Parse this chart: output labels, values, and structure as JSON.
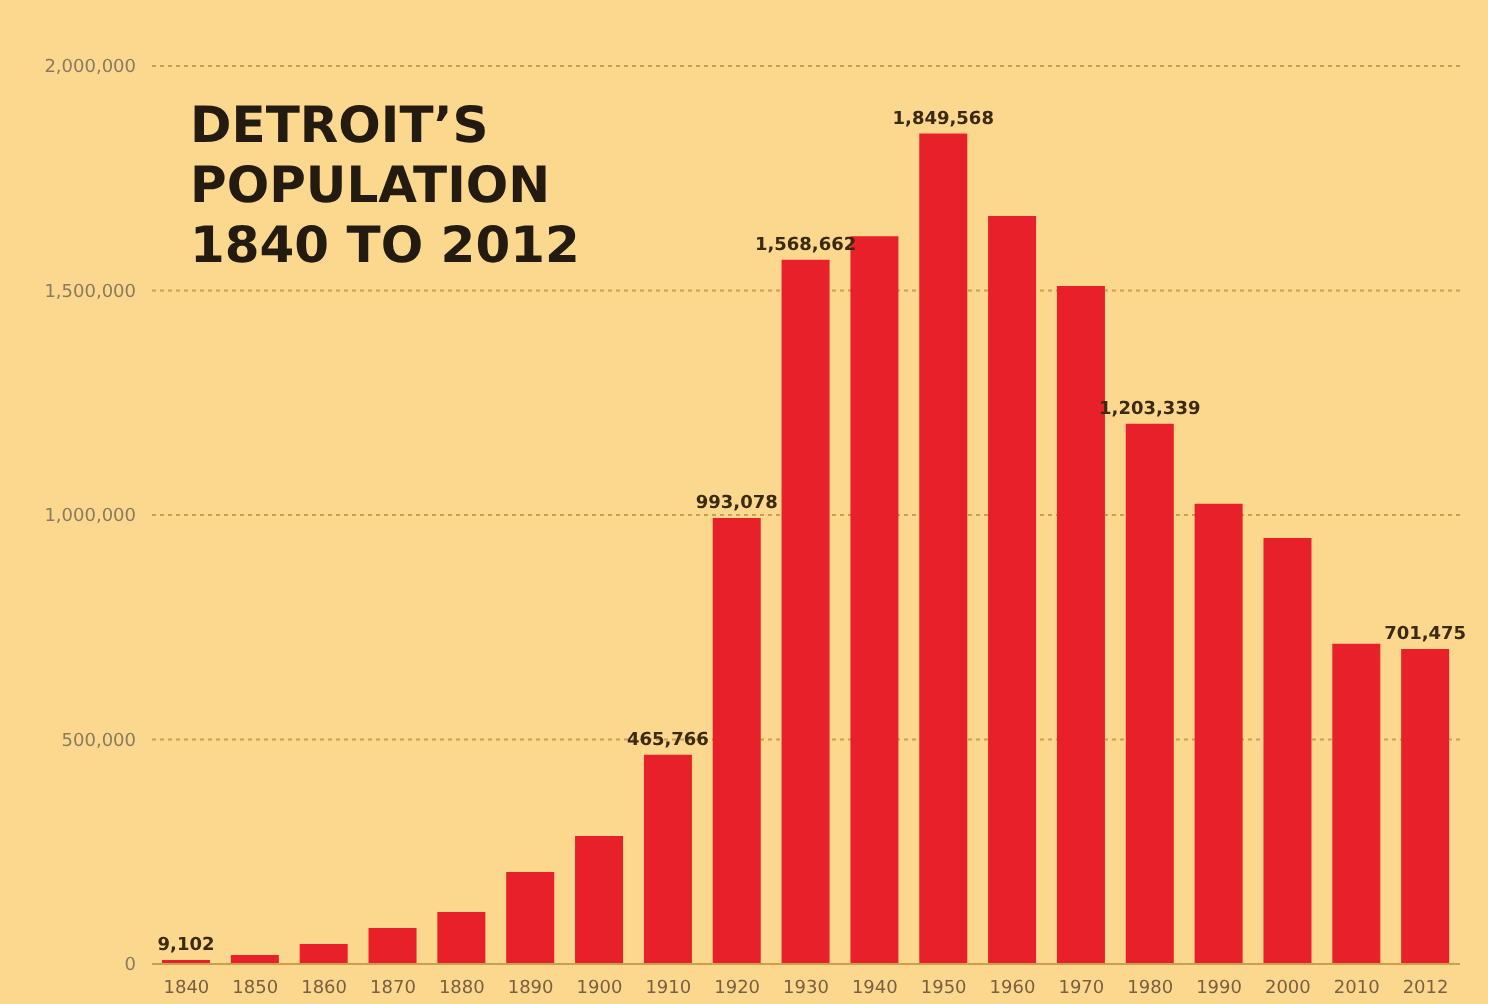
{
  "chart_data": {
    "type": "bar",
    "title": "DETROIT’S POPULATION 1840 TO 2012",
    "categories": [
      "1840",
      "1850",
      "1860",
      "1870",
      "1880",
      "1890",
      "1900",
      "1910",
      "1920",
      "1930",
      "1940",
      "1950",
      "1960",
      "1970",
      "1980",
      "1990",
      "2000",
      "2010",
      "2012"
    ],
    "values": [
      9102,
      20000,
      44500,
      80000,
      116000,
      205000,
      285000,
      465766,
      993078,
      1568662,
      1621000,
      1849568,
      1666000,
      1510000,
      1203339,
      1025000,
      949000,
      713000,
      701475
    ],
    "value_labels": [
      "9,102",
      null,
      null,
      null,
      null,
      null,
      null,
      "465,766",
      "993,078",
      "1,568,662",
      null,
      "1,849,568",
      null,
      null,
      "1,203,339",
      null,
      null,
      null,
      "701,475"
    ],
    "color": "#e8202a",
    "ylim": [
      0,
      2000000
    ],
    "yticks": [
      {
        "value": 0,
        "label": "0"
      },
      {
        "value": 500000,
        "label": "500,000"
      },
      {
        "value": 1000000,
        "label": "1,000,000"
      },
      {
        "value": 1500000,
        "label": "1,500,000"
      },
      {
        "value": 2000000,
        "label": "2,000,000"
      }
    ],
    "grid": "y"
  }
}
